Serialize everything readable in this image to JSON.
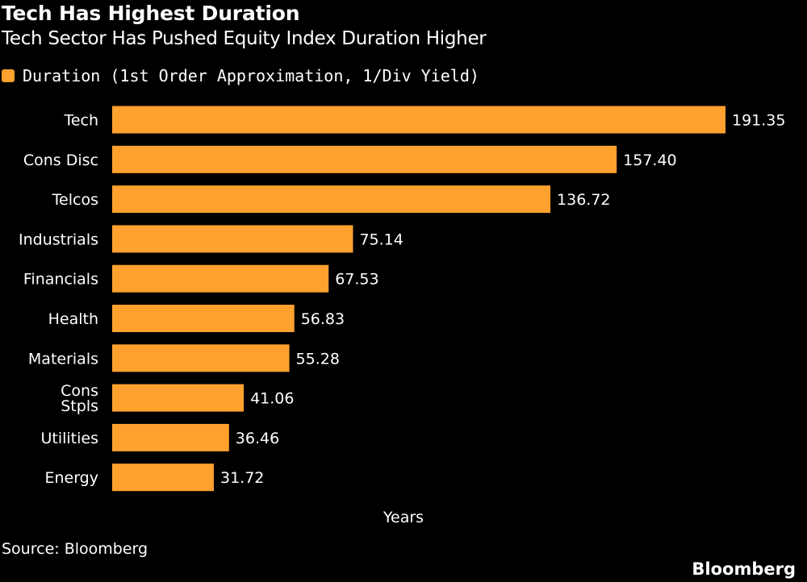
{
  "header": {
    "title": "Tech Has Highest Duration",
    "subtitle": "Tech Sector Has Pushed Equity Index Duration Higher"
  },
  "colors": {
    "bar": "#FFA12E",
    "background": "#000000",
    "text": "#FFFFFF"
  },
  "chart_data": {
    "type": "bar",
    "orientation": "horizontal",
    "categories": [
      "Tech",
      "Cons Disc",
      "Telcos",
      "Industrials",
      "Financials",
      "Health",
      "Materials",
      "Cons Stpls",
      "Utilities",
      "Energy"
    ],
    "category_lines": [
      [
        "Tech"
      ],
      [
        "Cons Disc"
      ],
      [
        "Telcos"
      ],
      [
        "Industrials"
      ],
      [
        "Financials"
      ],
      [
        "Health"
      ],
      [
        "Materials"
      ],
      [
        "Cons",
        "Stpls"
      ],
      [
        "Utilities"
      ],
      [
        "Energy"
      ]
    ],
    "series": [
      {
        "name": "Duration (1st Order Approximation, 1/Div Yield)",
        "values": [
          191.35,
          157.4,
          136.72,
          75.14,
          67.53,
          56.83,
          55.28,
          41.06,
          36.46,
          31.72
        ]
      }
    ],
    "value_labels": [
      "191.35",
      "157.40",
      "136.72",
      "75.14",
      "67.53",
      "56.83",
      "55.28",
      "41.06",
      "36.46",
      "31.72"
    ],
    "xlabel": "Years",
    "xlim": [
      0,
      191.35
    ],
    "grid": false,
    "legend_position": "top-left"
  },
  "footer": {
    "source": "Source: Bloomberg",
    "brand": "Bloomberg"
  }
}
